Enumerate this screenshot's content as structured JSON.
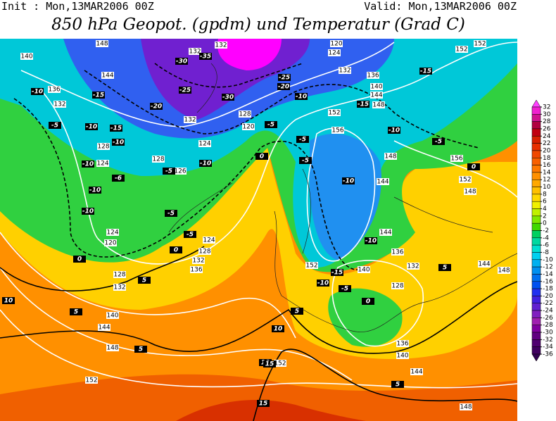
{
  "header": {
    "init": "Init : Mon,13MAR2006 00Z",
    "valid": "Valid: Mon,13MAR2006 00Z",
    "title": "850 hPa Geopot. (gpdm) und Temperatur (Grad C)"
  },
  "colorbar": {
    "ticks": [
      32,
      30,
      28,
      26,
      24,
      22,
      20,
      18,
      16,
      14,
      12,
      10,
      8,
      6,
      4,
      2,
      0,
      -2,
      -4,
      -6,
      -8,
      -10,
      -12,
      -14,
      -16,
      -18,
      -20,
      -22,
      -24,
      -26,
      -28,
      -30,
      -32,
      -34,
      -36
    ],
    "colors": [
      "#ff40ff",
      "#f020d0",
      "#d01090",
      "#b00040",
      "#c00010",
      "#d82000",
      "#e83000",
      "#f04800",
      "#f86000",
      "#ff7800",
      "#ff9000",
      "#ffa800",
      "#ffc000",
      "#ffd800",
      "#f0f000",
      "#c0f000",
      "#80e800",
      "#40d800",
      "#00d060",
      "#00d8a0",
      "#00e0d0",
      "#00d0f0",
      "#00b0f0",
      "#0090f0",
      "#0070f0",
      "#0050f0",
      "#2030f0",
      "#4020e0",
      "#6020d0",
      "#8020c0",
      "#a020b0",
      "#8000a0",
      "#600080",
      "#500070",
      "#400060",
      "#300050"
    ]
  },
  "geopotential_labels": [
    148,
    140,
    132,
    132,
    120,
    124,
    132,
    136,
    140,
    144,
    148,
    152,
    152,
    144,
    136,
    132,
    128,
    124,
    128,
    126,
    124,
    120,
    128,
    132,
    152,
    156,
    148,
    144,
    156,
    152,
    148,
    124,
    120,
    128,
    132,
    124,
    128,
    132,
    136,
    140,
    144,
    148,
    152,
    152,
    144,
    148,
    136,
    140,
    152,
    140,
    144,
    136,
    132,
    128,
    144,
    148
  ],
  "temperature_labels": [
    -10,
    -15,
    -10,
    -15,
    -5,
    -10,
    -10,
    -6,
    -10,
    -10,
    -5,
    0,
    -5,
    -20,
    -25,
    -30,
    -35,
    -30,
    -20,
    -25,
    -10,
    -15,
    -5,
    0,
    -5,
    -5,
    -10,
    -5,
    -10,
    -5,
    0,
    -15,
    -10,
    -10,
    -15,
    -10,
    -5,
    0,
    5,
    5,
    10,
    5,
    5,
    10,
    10,
    15,
    15,
    5,
    5,
    0
  ]
}
